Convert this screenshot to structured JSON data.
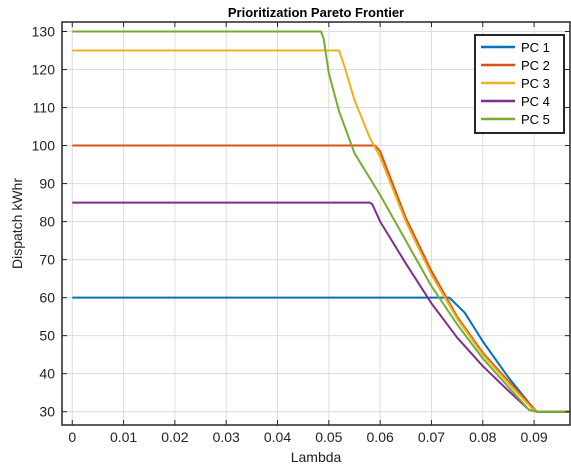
{
  "chart_data": {
    "type": "line",
    "title": "Prioritization Pareto Frontier",
    "xlabel": "Lambda",
    "ylabel": "Dispatch kWhr",
    "xlim": [
      -0.002,
      0.097
    ],
    "ylim": [
      26.5,
      132.5
    ],
    "xticks": [
      0,
      0.01,
      0.02,
      0.03,
      0.04,
      0.05,
      0.06,
      0.07,
      0.08,
      0.09
    ],
    "xtick_labels": [
      "0",
      "0.01",
      "0.02",
      "0.03",
      "0.04",
      "0.05",
      "0.06",
      "0.07",
      "0.08",
      "0.09"
    ],
    "yticks": [
      30,
      40,
      50,
      60,
      70,
      80,
      90,
      100,
      110,
      120,
      130
    ],
    "ytick_labels": [
      "30",
      "40",
      "50",
      "60",
      "70",
      "80",
      "90",
      "100",
      "110",
      "120",
      "130"
    ],
    "grid": true,
    "legend_position": "top-right",
    "series": [
      {
        "name": "PC 1",
        "color": "#0072BD",
        "points": [
          [
            0,
            60
          ],
          [
            0.0735,
            60
          ],
          [
            0.0765,
            56
          ],
          [
            0.08,
            48.5
          ],
          [
            0.085,
            39
          ],
          [
            0.0895,
            31.5
          ],
          [
            0.0905,
            30
          ],
          [
            0.097,
            30
          ]
        ]
      },
      {
        "name": "PC 2",
        "color": "#D95319",
        "points": [
          [
            0,
            100
          ],
          [
            0.059,
            100
          ],
          [
            0.06,
            98.5
          ],
          [
            0.065,
            81
          ],
          [
            0.07,
            67
          ],
          [
            0.075,
            55
          ],
          [
            0.08,
            45.5
          ],
          [
            0.085,
            38
          ],
          [
            0.0895,
            31.5
          ],
          [
            0.0905,
            30
          ],
          [
            0.097,
            30
          ]
        ]
      },
      {
        "name": "PC 3",
        "color": "#EDB120",
        "points": [
          [
            0,
            125
          ],
          [
            0.052,
            125
          ],
          [
            0.053,
            121
          ],
          [
            0.055,
            112
          ],
          [
            0.058,
            102
          ],
          [
            0.06,
            97
          ],
          [
            0.065,
            80
          ],
          [
            0.07,
            66
          ],
          [
            0.075,
            54.5
          ],
          [
            0.08,
            45
          ],
          [
            0.085,
            37.5
          ],
          [
            0.0895,
            31
          ],
          [
            0.0905,
            30
          ],
          [
            0.097,
            30
          ]
        ]
      },
      {
        "name": "PC 4",
        "color": "#7E2F8E",
        "points": [
          [
            0,
            85
          ],
          [
            0.058,
            85
          ],
          [
            0.0585,
            84.5
          ],
          [
            0.06,
            80
          ],
          [
            0.065,
            69
          ],
          [
            0.07,
            58.5
          ],
          [
            0.075,
            49.5
          ],
          [
            0.08,
            42
          ],
          [
            0.085,
            35.5
          ],
          [
            0.089,
            30.5
          ],
          [
            0.0905,
            30
          ],
          [
            0.097,
            30
          ]
        ]
      },
      {
        "name": "PC 5",
        "color": "#77AC30",
        "points": [
          [
            0,
            130
          ],
          [
            0.0485,
            130
          ],
          [
            0.049,
            128
          ],
          [
            0.05,
            119
          ],
          [
            0.052,
            109
          ],
          [
            0.055,
            98
          ],
          [
            0.06,
            87
          ],
          [
            0.065,
            75
          ],
          [
            0.07,
            63
          ],
          [
            0.075,
            53
          ],
          [
            0.08,
            44
          ],
          [
            0.085,
            36.5
          ],
          [
            0.089,
            30.5
          ],
          [
            0.0905,
            30
          ],
          [
            0.097,
            30
          ]
        ]
      }
    ]
  }
}
